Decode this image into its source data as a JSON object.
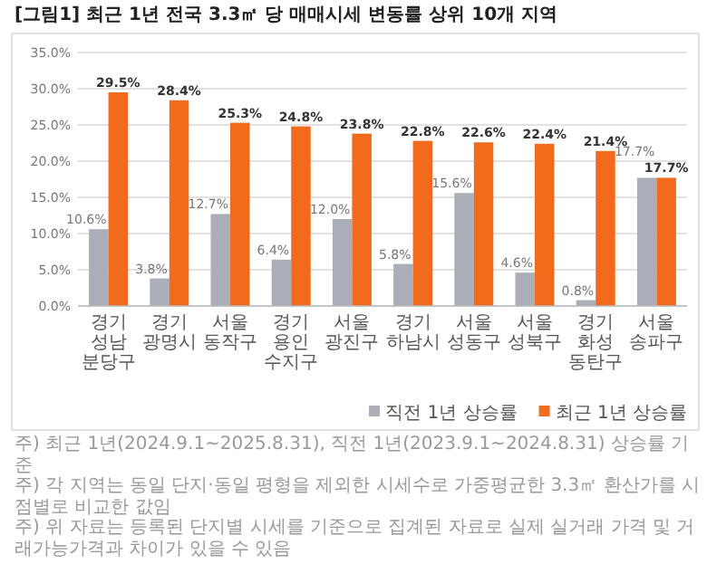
{
  "chart_data": {
    "type": "bar",
    "title": "[그림1] 최근 1년 전국 3.3㎡ 당 매매시세 변동률 상위 10개 지역",
    "categories": [
      "경기 성남 분당구",
      "경기 광명시",
      "서울 동작구",
      "경기 용인 수지구",
      "서울 광진구",
      "경기 하남시",
      "서울 성동구",
      "서울 성북구",
      "경기 화성 동탄구",
      "서울 송파구"
    ],
    "series": [
      {
        "name": "직전 1년 상승률",
        "color": "#a9aeb8",
        "values": [
          10.6,
          3.8,
          12.7,
          6.4,
          12.0,
          5.8,
          15.6,
          4.6,
          0.8,
          17.7
        ],
        "value_labels": [
          "10.6%",
          "3.8%",
          "12.7%",
          "6.4%",
          "12.0%",
          "5.8%",
          "15.6%",
          "4.6%",
          "0.8%",
          "17.7%"
        ]
      },
      {
        "name": "최근 1년 상승률",
        "color": "#f26b1d",
        "values": [
          29.5,
          28.4,
          25.3,
          24.8,
          23.8,
          22.8,
          22.6,
          22.4,
          21.4,
          17.7
        ],
        "value_labels": [
          "29.5%",
          "28.4%",
          "25.3%",
          "24.8%",
          "23.8%",
          "22.8%",
          "22.6%",
          "22.4%",
          "21.4%",
          "17.7%"
        ]
      }
    ],
    "ylim": [
      0,
      35
    ],
    "yticks": [
      {
        "value": 0,
        "label": "0.0%"
      },
      {
        "value": 5,
        "label": "5.0%"
      },
      {
        "value": 10,
        "label": "10.0%"
      },
      {
        "value": 15,
        "label": "15.0%"
      },
      {
        "value": 20,
        "label": "20.0%"
      },
      {
        "value": 25,
        "label": "25.0%"
      },
      {
        "value": 30,
        "label": "30.0%"
      },
      {
        "value": 35,
        "label": "35.0%"
      }
    ],
    "grid": "y",
    "legend": "bottom right",
    "annotations": [
      "주) 최근 1년(2024.9.1~2025.8.31), 직전 1년(2023.9.1~2024.8.31) 상승률 기준",
      "주) 각 지역는 동일 단지·동일 평형을 제외한 시세수로 가중평균한 3.3㎡ 환산가를 시점별로 비교한 값임",
      "주) 위 자료는 등록된 단지별 시세를 기준으로 집계된 자료로 실제 실거래 가격 및 거래가능가격과 차이가 있을 수 있음"
    ]
  }
}
